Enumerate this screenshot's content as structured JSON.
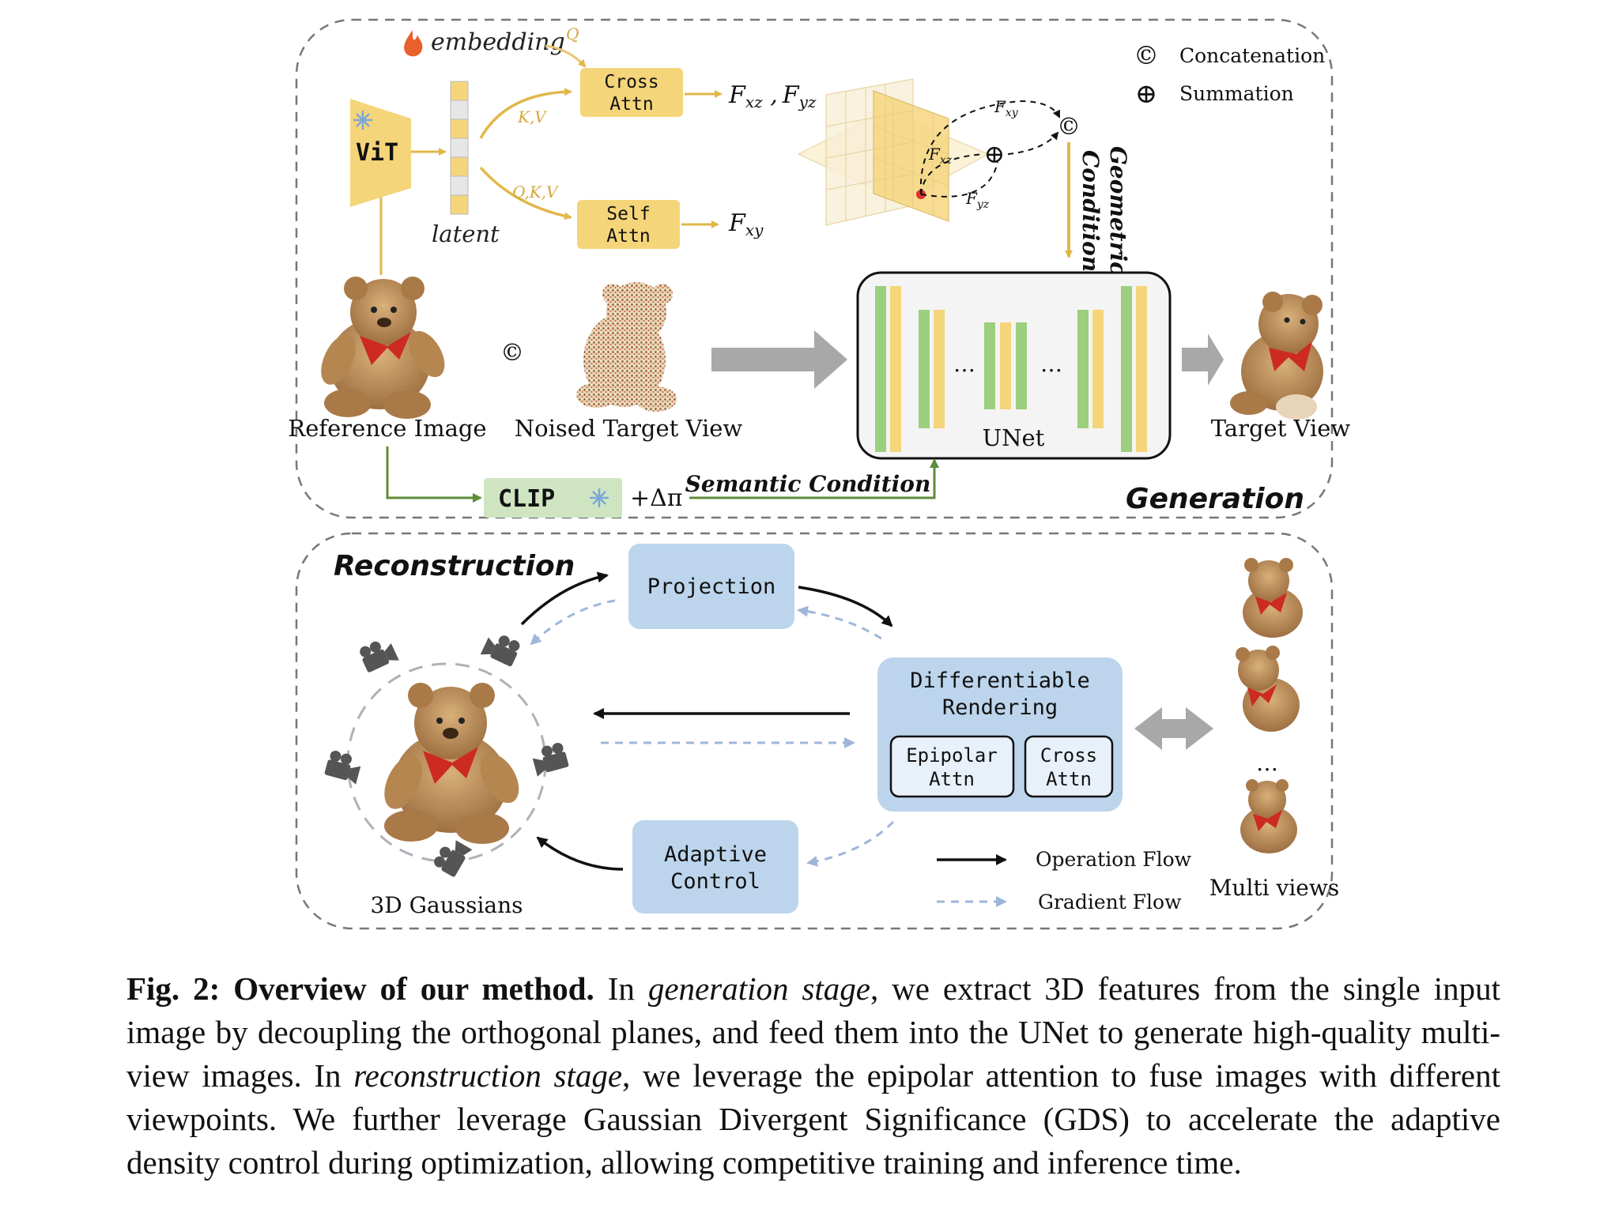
{
  "generation": {
    "stage_label": "Generation",
    "embedding_label": "embedding",
    "q_label": "Q",
    "kv_label": "K,V",
    "qkv_label": "Q,K,V",
    "vit_label": "ViT",
    "latent_label": "latent",
    "cross_attn_line1": "Cross",
    "cross_attn_line2": "Attn",
    "self_attn_line1": "Self",
    "self_attn_line2": "Attn",
    "f_xz": "F",
    "f_xz_sub": "xz",
    "f_sep": " ,",
    "f_yz": "F",
    "f_yz_sub": "yz",
    "f_xy": "F",
    "f_xy_sub": "xy",
    "plane_fxy": "F",
    "plane_fxy_sub": "xy",
    "plane_fxz": "F",
    "plane_fxz_sub": "xz",
    "plane_fyz": "F",
    "plane_fyz_sub": "yz",
    "concat_symbol": "©",
    "sum_symbol": "⊕",
    "geometric_line1": "Geometric",
    "geometric_line2": "Condition",
    "reference_image_label": "Reference Image",
    "noised_target_label": "Noised Target View",
    "unet_label": "UNet",
    "unet_dots": "…",
    "target_view_label": "Target View",
    "clip_label": "CLIP",
    "delta_pi": "+Δπ",
    "semantic_condition": "Semantic Condition"
  },
  "legend": {
    "concatenation": "Concatenation",
    "summation": "Summation"
  },
  "reconstruction": {
    "stage_label": "Reconstruction",
    "projection": "Projection",
    "diff_line1": "Differentiable",
    "diff_line2": "Rendering",
    "epipolar_line1": "Epipolar",
    "epipolar_line2": "Attn",
    "cross_line1": "Cross",
    "cross_line2": "Attn",
    "adaptive_line1": "Adaptive",
    "adaptive_line2": "Control",
    "gaussians_label": "3D Gaussians",
    "multi_views_label": "Multi views",
    "dots": "…",
    "operation_flow": "Operation Flow",
    "gradient_flow": "Gradient Flow"
  },
  "caption": {
    "lead": "Fig. 2: Overview of our method.",
    "t1": " In ",
    "i1": "generation stage",
    "t2": ", we extract 3D features from the single input image by decoupling the orthogonal planes, and feed them into the UNet to generate high-quality multi-view images. In ",
    "i2": "reconstruction stage",
    "t3": ", we leverage the epipolar attention to fuse images with different viewpoints. We further leverage Gaussian Divergent Significance (GDS) to accelerate the adaptive density control during optimization, allowing competitive training and inference time."
  },
  "colors": {
    "yellow": "#f5d57a",
    "yellow_dark": "#e0b84a",
    "green": "#9ccf7e",
    "clip_bg": "#cfe5c2",
    "blue_box": "#bcd5ec",
    "gray_arrow": "#a8a8a8",
    "dashed_border": "#777777",
    "teddy": "#b88a55"
  }
}
